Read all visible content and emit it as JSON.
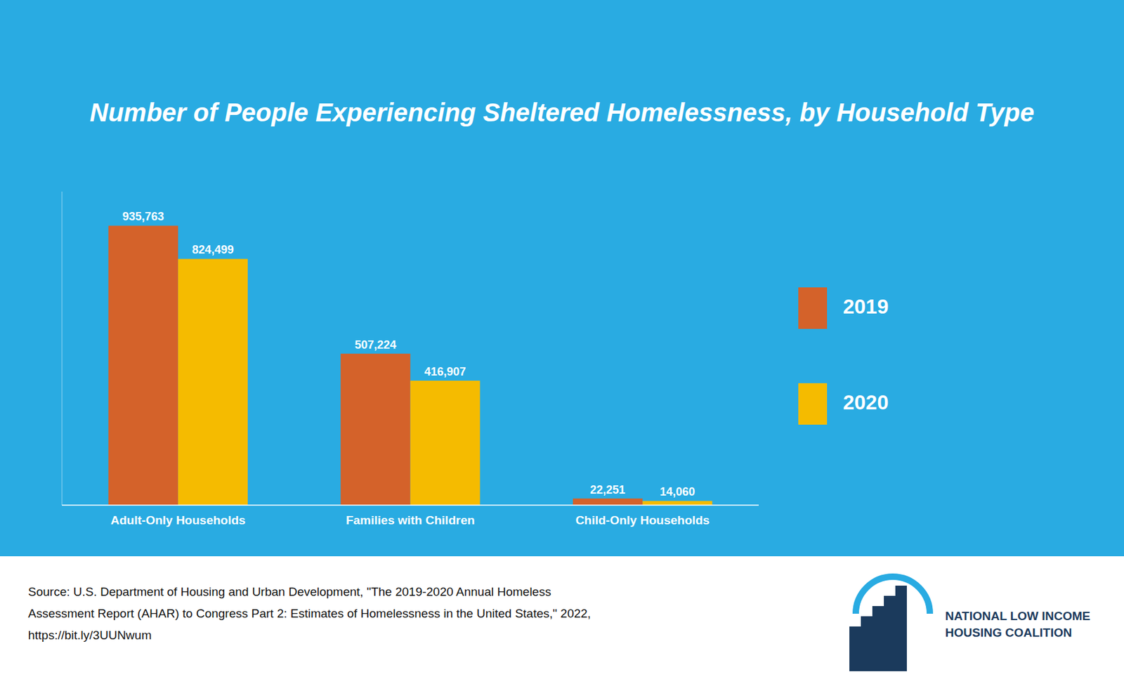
{
  "chart_data": {
    "type": "bar",
    "title": "Number of People Experiencing Sheltered Homelessness, by Household Type",
    "categories": [
      "Adult-Only Households",
      "Families with Children",
      "Child-Only Households"
    ],
    "series": [
      {
        "name": "2019",
        "color": "#D4622A",
        "values": [
          935763,
          507224,
          22251
        ],
        "value_labels": [
          "935,763",
          "507,224",
          "22,251"
        ]
      },
      {
        "name": "2020",
        "color": "#F5BB00",
        "values": [
          824499,
          416907,
          14060
        ],
        "value_labels": [
          "824,499",
          "416,907",
          "14,060"
        ]
      }
    ],
    "ylim": [
      0,
      1050000
    ],
    "grid": false,
    "legend": "right",
    "data_labels": true,
    "tick_labels": "x",
    "annotations": [
      "Source: U.S. Department of Housing and Urban Development, \"The 2019-2020 Annual Homeless",
      "Assessment Report (AHAR) to Congress Part 2: Estimates of Homelessness in the United States,\" 2022,",
      "https://bit.ly/3UUNwum",
      "NATIONAL LOW INCOME",
      "HOUSING COALITION"
    ]
  }
}
